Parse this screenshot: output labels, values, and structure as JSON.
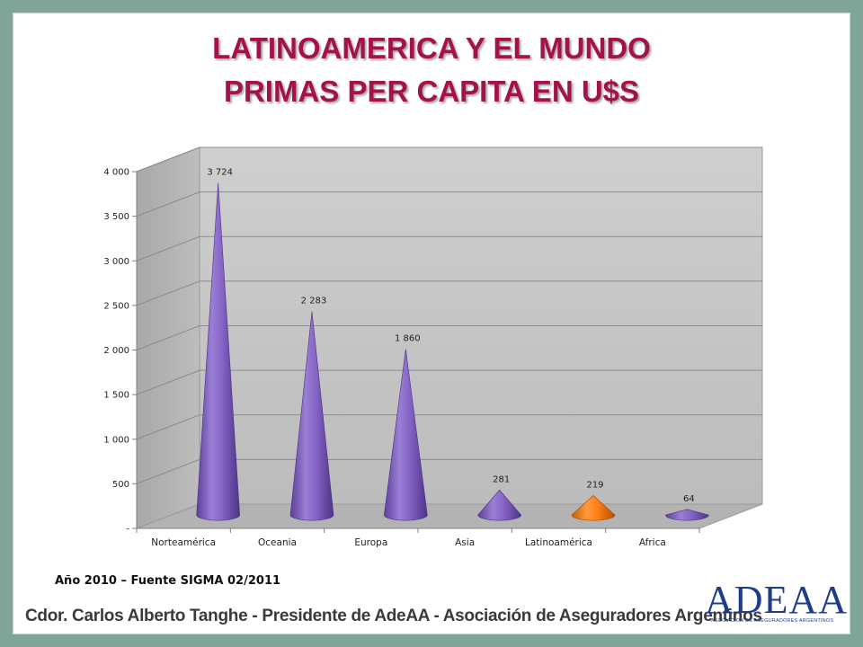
{
  "title_line1": "LATINOAMERICA Y EL MUNDO",
  "title_line2": "PRIMAS PER CAPITA EN U$S",
  "source_note": "Año 2010 – Fuente SIGMA 02/2011",
  "footer_text": "Cdor. Carlos Alberto Tanghe - Presidente  de AdeAA - Asociación de Aseguradores Argentinos",
  "logo": {
    "name": "ADEAA",
    "subtitle": "ASOCIACION DE ASEGURADORES ARGENTINOS"
  },
  "colors": {
    "title": "#a3124a",
    "frame": "#7fa49a",
    "cone_default": "#8d6fc7",
    "cone_highlight": "#ff7f16",
    "wall": "#c0c0c0",
    "floor": "#b3b3b3"
  },
  "chart_data": {
    "type": "bar",
    "style": "3d-cone",
    "categories": [
      "Norteamérica",
      "Oceania",
      "Europa",
      "Asia",
      "Latinoamérica",
      "Africa"
    ],
    "values": [
      3724,
      2283,
      1860,
      281,
      219,
      64
    ],
    "data_labels": [
      "3 724",
      "2 283",
      "1 860",
      "281",
      "219",
      "64"
    ],
    "highlight_category": "Latinoamérica",
    "ylim": [
      0,
      4000
    ],
    "yticks": [
      0,
      500,
      1000,
      1500,
      2000,
      2500,
      3000,
      3500,
      4000
    ],
    "ytick_labels": [
      "-",
      "500",
      "1 000",
      "1 500",
      "2 000",
      "2 500",
      "3 000",
      "3 500",
      "4 000"
    ],
    "grid": true,
    "legend": "none"
  }
}
